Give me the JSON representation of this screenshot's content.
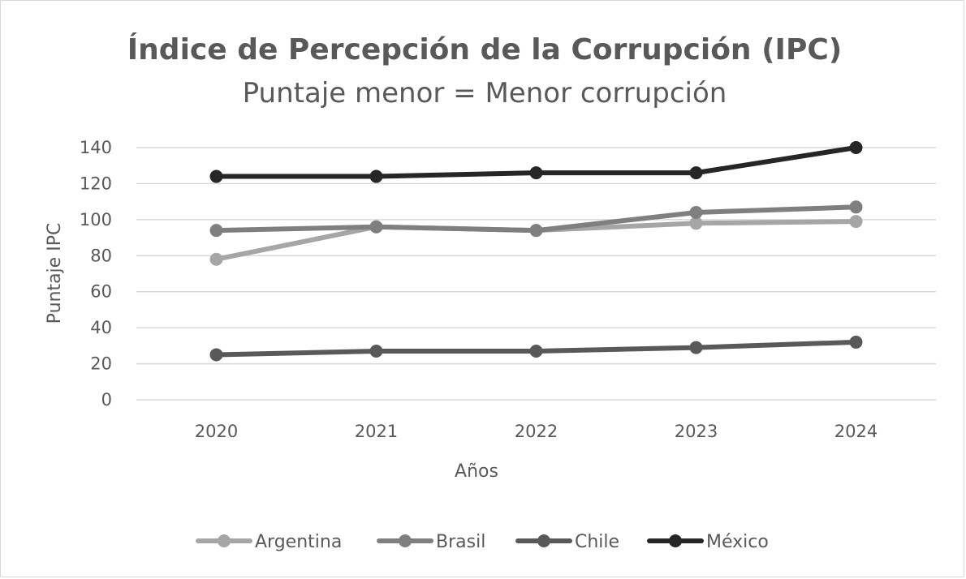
{
  "chart_data": {
    "type": "line",
    "title": "Índice de Percepción de la Corrupción (IPC)",
    "subtitle": "Puntaje menor = Menor corrupción",
    "xlabel": "Años",
    "ylabel": "Puntaje IPC",
    "categories": [
      "2020",
      "2021",
      "2022",
      "2023",
      "2024"
    ],
    "ylim": [
      0,
      140
    ],
    "yticks": [
      0,
      20,
      40,
      60,
      80,
      100,
      120,
      140
    ],
    "grid": true,
    "legend_position": "bottom",
    "series": [
      {
        "name": "Argentina",
        "color": "#a6a6a6",
        "values": [
          78,
          96,
          94,
          98,
          99
        ]
      },
      {
        "name": "Brasil",
        "color": "#7f7f7f",
        "values": [
          94,
          96,
          94,
          104,
          107
        ]
      },
      {
        "name": "Chile",
        "color": "#595959",
        "values": [
          25,
          27,
          27,
          29,
          32
        ]
      },
      {
        "name": "México",
        "color": "#262626",
        "values": [
          124,
          124,
          126,
          126,
          140
        ]
      }
    ]
  }
}
